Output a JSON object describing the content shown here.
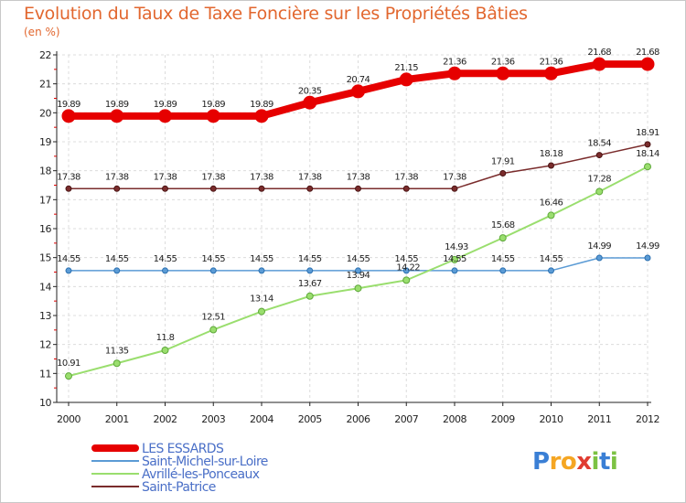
{
  "header": {
    "title": "Evolution du Taux de Taxe Foncière sur les Propriétés Bâties",
    "unit": "(en %)"
  },
  "logo": {
    "text": "Proxiti",
    "colors": [
      "#3a7fd5",
      "#f5a623",
      "#e03c31",
      "#7cc243"
    ]
  },
  "chart_data": {
    "type": "line",
    "x": [
      "2000",
      "2001",
      "2002",
      "2003",
      "2004",
      "2005",
      "2006",
      "2007",
      "2008",
      "2009",
      "2010",
      "2011",
      "2012"
    ],
    "ylim": [
      10,
      22
    ],
    "yticks": [
      10,
      11,
      12,
      13,
      14,
      15,
      16,
      17,
      18,
      19,
      20,
      21,
      22
    ],
    "grid": true,
    "legend_position": "bottom-left",
    "series": [
      {
        "name": "LES ESSARDS",
        "color": "#e60000",
        "labels": [
          "19.89",
          "19.89",
          "19.89",
          "19.89",
          "19.89",
          "20.35",
          "20.74",
          "21.15",
          "21.36",
          "21.36",
          "21.36",
          "21.68",
          "21.68"
        ],
        "values": [
          19.89,
          19.89,
          19.89,
          19.89,
          19.89,
          20.35,
          20.74,
          21.15,
          21.36,
          21.36,
          21.36,
          21.68,
          21.68
        ]
      },
      {
        "name": "Saint-Michel-sur-Loire",
        "color": "#5b9bd5",
        "labels": [
          "14.55",
          "14.55",
          "14.55",
          "14.55",
          "14.55",
          "14.55",
          "14.55",
          "14.55",
          "14.55",
          "14.55",
          "14.55",
          "14.99",
          "14.99"
        ],
        "values": [
          14.55,
          14.55,
          14.55,
          14.55,
          14.55,
          14.55,
          14.55,
          14.55,
          14.55,
          14.55,
          14.55,
          14.99,
          14.99
        ]
      },
      {
        "name": "Avrillé-les-Ponceaux",
        "color": "#9ade6e",
        "labels": [
          "10.91",
          "11.35",
          "11.8",
          "12.51",
          "13.14",
          "13.67",
          "13.94",
          "14.22",
          "14.93",
          "15.68",
          "16.46",
          "17.28",
          "18.14"
        ],
        "values": [
          10.91,
          11.35,
          11.8,
          12.51,
          13.14,
          13.67,
          13.94,
          14.22,
          14.93,
          15.68,
          16.46,
          17.28,
          18.14
        ]
      },
      {
        "name": "Saint-Patrice",
        "color": "#7a2c2c",
        "labels": [
          "17.38",
          "17.38",
          "17.38",
          "17.38",
          "17.38",
          "17.38",
          "17.38",
          "17.38",
          "17.38",
          "17.91",
          "18.18",
          "18.54",
          "18.91"
        ],
        "values": [
          17.38,
          17.38,
          17.38,
          17.38,
          17.38,
          17.38,
          17.38,
          17.38,
          17.38,
          17.91,
          18.18,
          18.54,
          18.91
        ]
      }
    ]
  }
}
